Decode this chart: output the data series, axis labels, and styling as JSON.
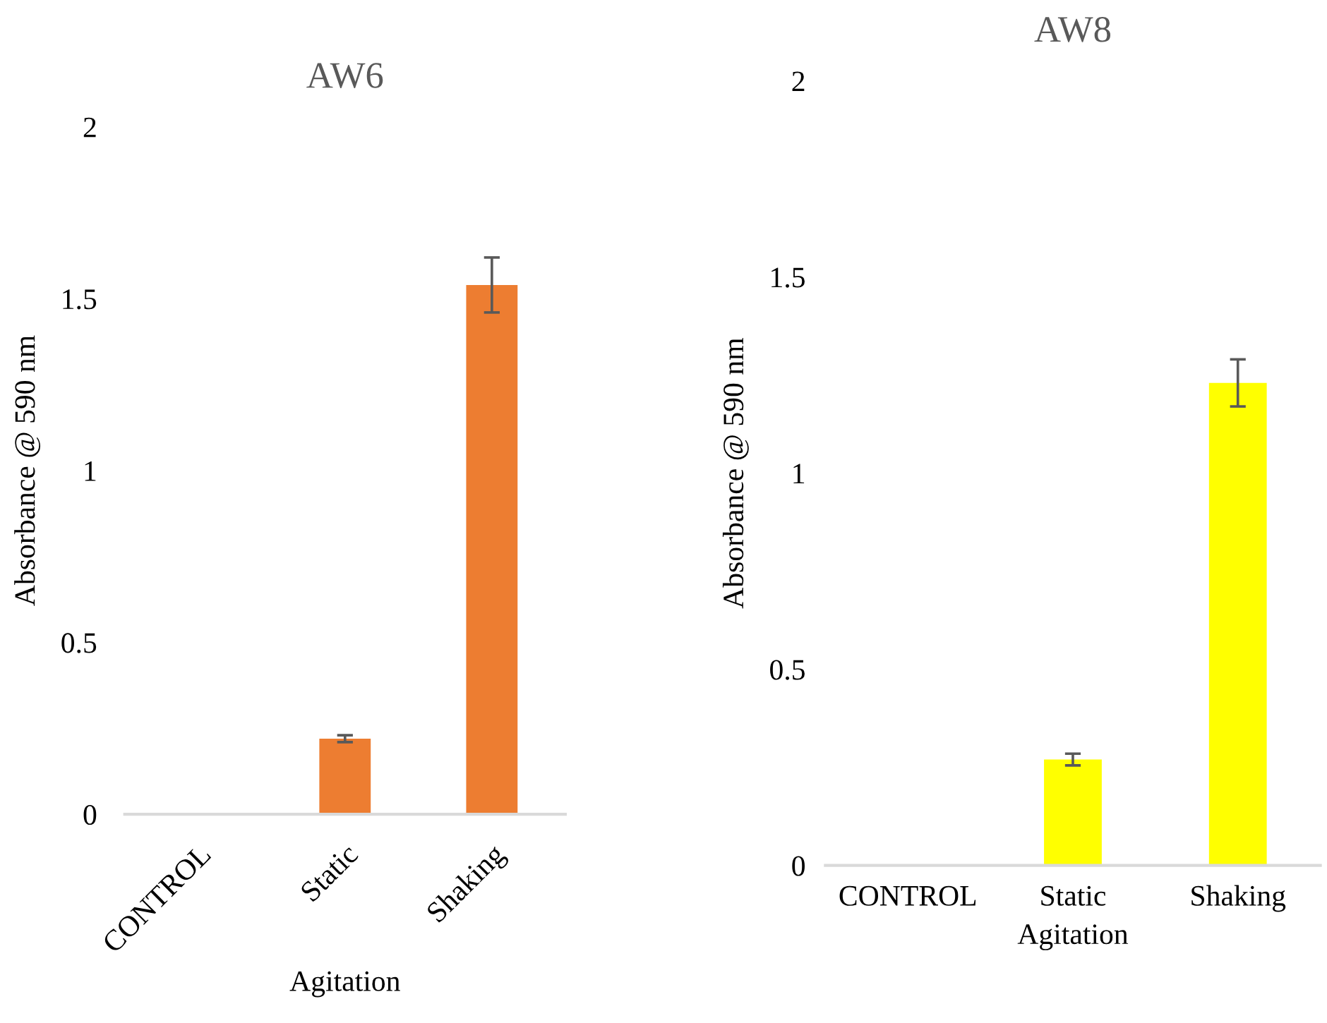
{
  "chart_data": [
    {
      "type": "bar",
      "title": "AW6",
      "xlabel": "Agitation",
      "ylabel": "Absorbance @ 590 nm",
      "categories": [
        "CONTROL",
        "Static",
        "Shaking"
      ],
      "values": [
        0,
        0.22,
        1.54
      ],
      "errors": [
        null,
        0.01,
        0.08
      ],
      "color": "#ed7d31",
      "ylim": [
        0,
        2
      ],
      "yticks": [
        0,
        0.5,
        1,
        1.5,
        2
      ],
      "grid": false,
      "legend": false
    },
    {
      "type": "bar",
      "title": "AW8",
      "xlabel": "Agitation",
      "ylabel": "Absorbance @ 590 nm",
      "categories": [
        "CONTROL",
        "Static",
        "Shaking"
      ],
      "values": [
        0,
        0.27,
        1.23
      ],
      "errors": [
        null,
        0.015,
        0.06
      ],
      "color": "#ffff00",
      "ylim": [
        0,
        2
      ],
      "yticks": [
        0,
        0.5,
        1,
        1.5,
        2
      ],
      "grid": false,
      "legend": false
    }
  ]
}
